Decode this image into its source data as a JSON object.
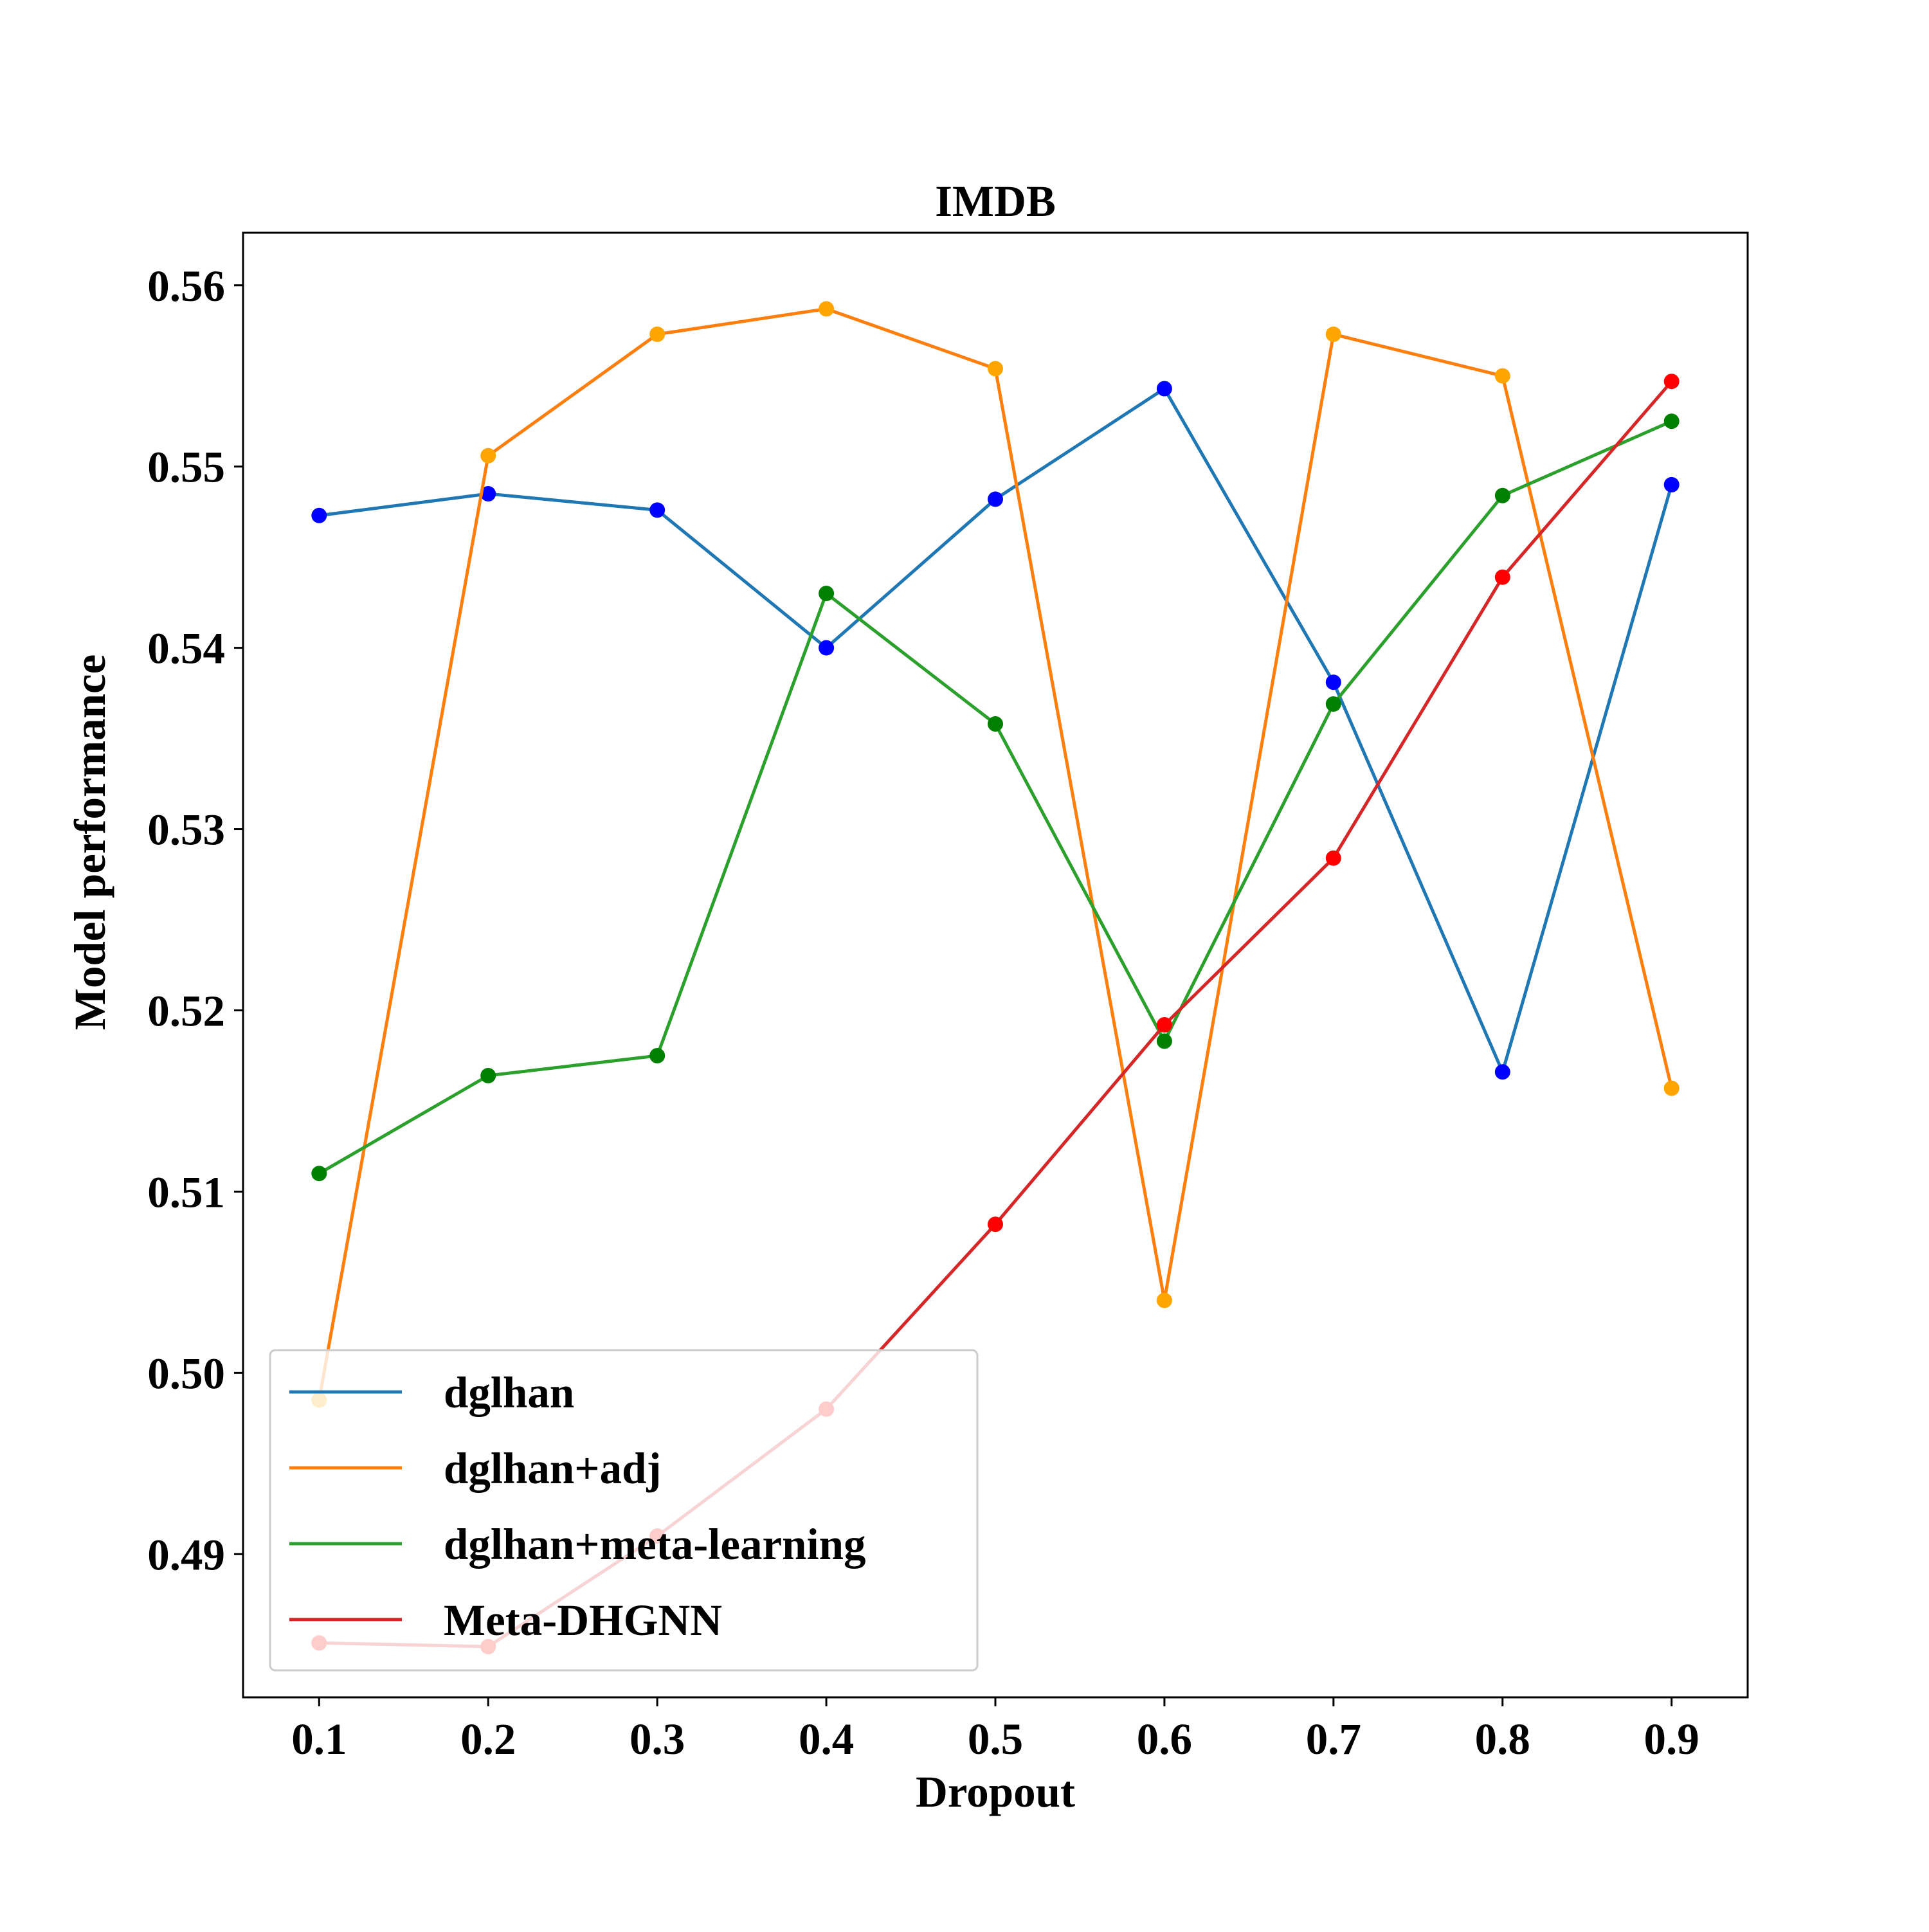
{
  "chart_data": {
    "type": "line",
    "title": "IMDB",
    "xlabel": "Dropout",
    "ylabel": "Model performance",
    "x": [
      0.1,
      0.2,
      0.3,
      0.4,
      0.5,
      0.6,
      0.7,
      0.8,
      0.9
    ],
    "x_ticks": [
      "0.1",
      "0.2",
      "0.3",
      "0.4",
      "0.5",
      "0.6",
      "0.7",
      "0.8",
      "0.9"
    ],
    "xlim": [
      0.055,
      0.945
    ],
    "y_ticks": [
      "0.49",
      "0.50",
      "0.51",
      "0.52",
      "0.53",
      "0.54",
      "0.55",
      "0.56"
    ],
    "y_tick_values": [
      0.49,
      0.5,
      0.51,
      0.52,
      0.53,
      0.54,
      0.55,
      0.56
    ],
    "ylim": [
      0.4821,
      0.5629
    ],
    "grid": false,
    "legend_position": "lower-left",
    "series": [
      {
        "name": "dglhan",
        "line_color": "#1f77b4",
        "marker_color": "#0000ff",
        "values": [
          0.5473,
          0.5485,
          0.5476,
          0.54,
          0.5482,
          0.5543,
          0.5381,
          0.5166,
          0.549
        ]
      },
      {
        "name": "dglhan+adj",
        "line_color": "#ff7f0e",
        "marker_color": "#ffa500",
        "values": [
          0.4985,
          0.5506,
          0.5573,
          0.5587,
          0.5554,
          0.504,
          0.5573,
          0.555,
          0.5157
        ]
      },
      {
        "name": "dglhan+meta-learning",
        "line_color": "#2ca02c",
        "marker_color": "#008000",
        "values": [
          0.511,
          0.5164,
          0.5175,
          0.543,
          0.5358,
          0.5183,
          0.5369,
          0.5484,
          0.5525
        ]
      },
      {
        "name": "Meta-DHGNN",
        "line_color": "#d62728",
        "marker_color": "#ff0000",
        "values": [
          0.4851,
          0.4849,
          0.491,
          0.498,
          0.5082,
          0.5192,
          0.5284,
          0.5439,
          0.5547
        ]
      }
    ]
  }
}
